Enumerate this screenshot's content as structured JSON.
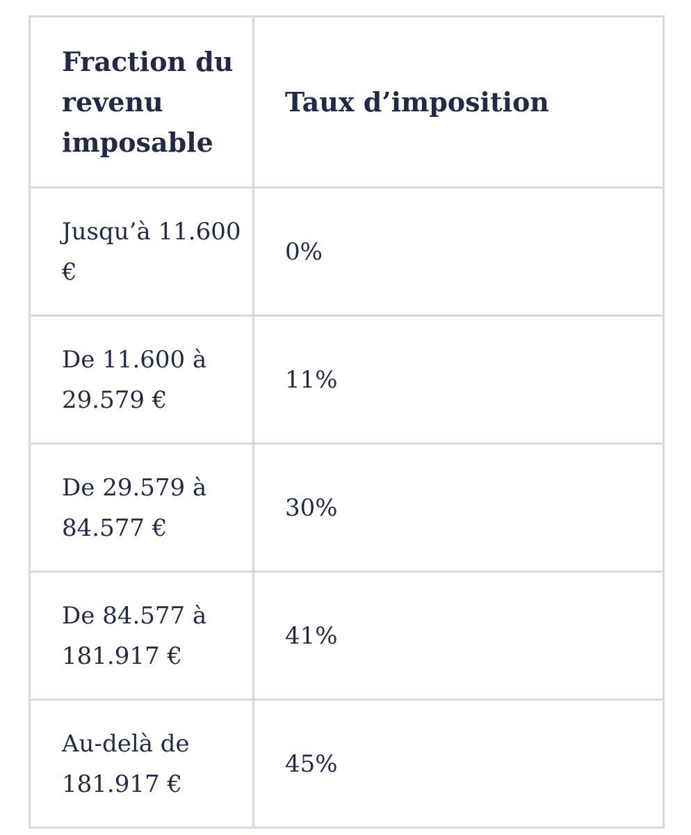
{
  "table": {
    "headers": {
      "fraction": "Fraction du revenu imposable",
      "rate": "Taux d’imposition"
    },
    "rows": [
      {
        "fraction": "Jusqu’à 11.600 €",
        "rate": "0%"
      },
      {
        "fraction": "De 11.600 à 29.579 €",
        "rate": "11%"
      },
      {
        "fraction": "De 29.579 à 84.577 €",
        "rate": "30%"
      },
      {
        "fraction": "De 84.577 à 181.917 €",
        "rate": "41%"
      },
      {
        "fraction": "Au-delà de 181.917 €",
        "rate": "45%"
      }
    ]
  },
  "colors": {
    "text": "#1f2a4d",
    "border": "#d5d9e3",
    "background": "#ffffff"
  }
}
